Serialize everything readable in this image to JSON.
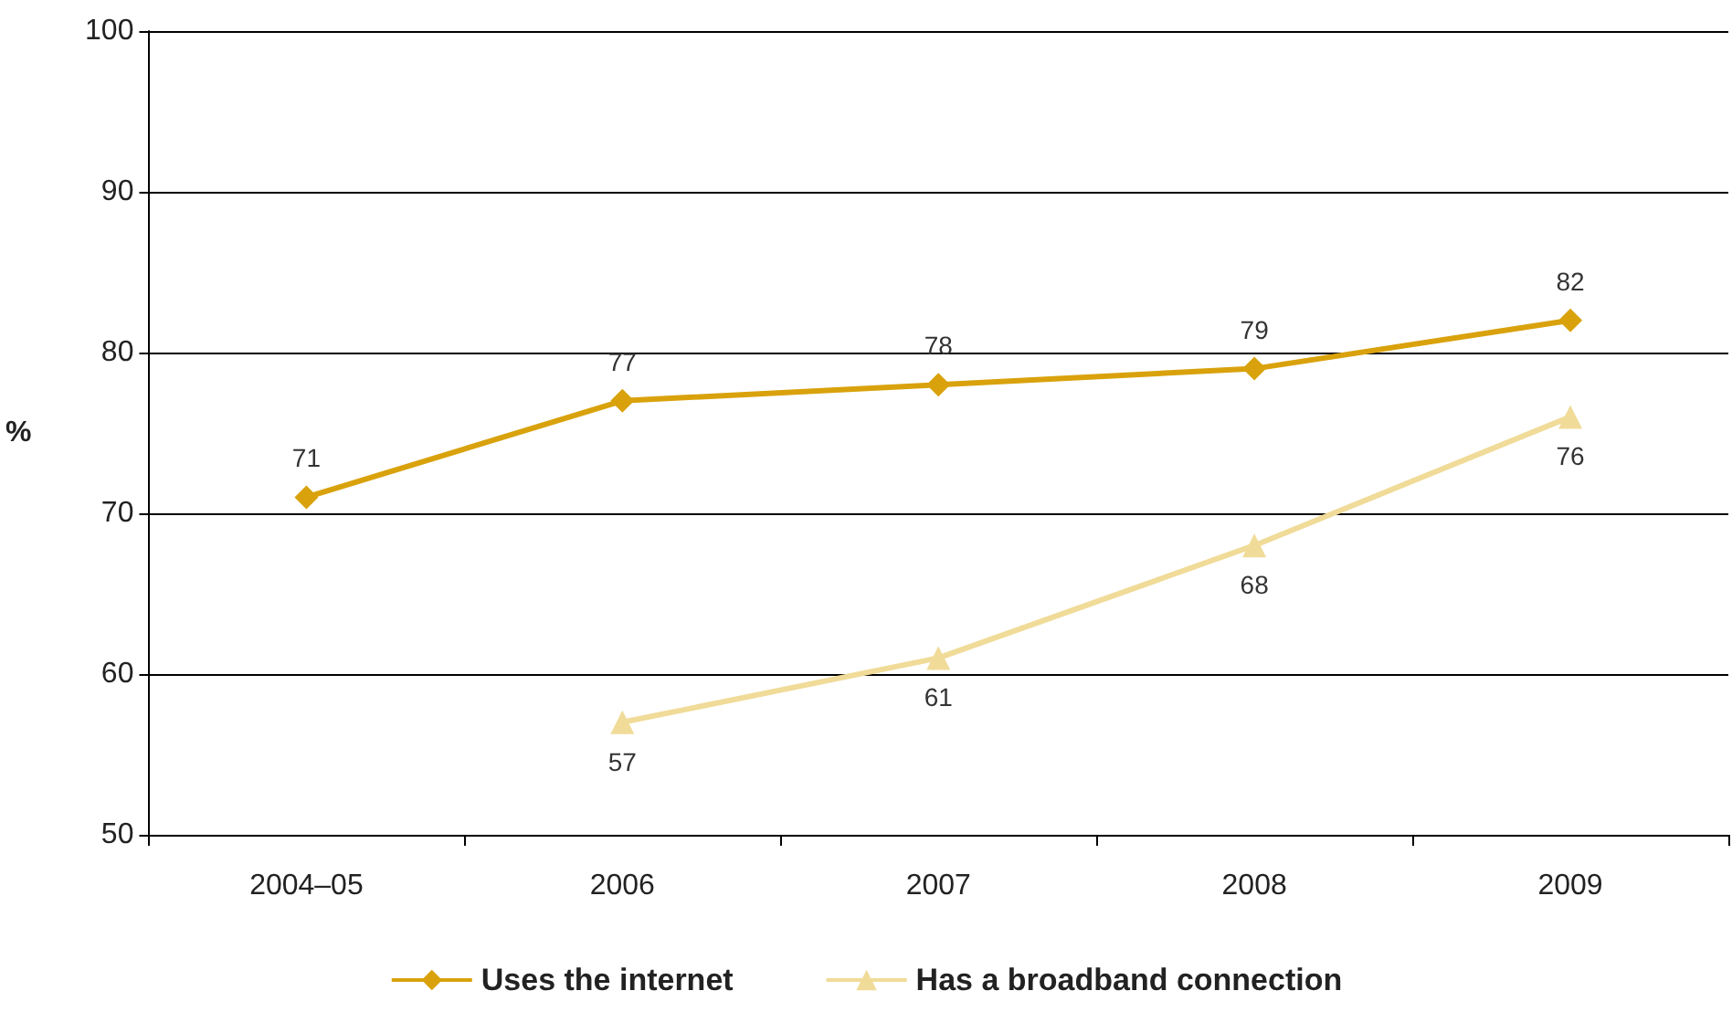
{
  "chart_data": {
    "type": "line",
    "ylabel": "%",
    "categories": [
      "2004–05",
      "2006",
      "2007",
      "2008",
      "2009"
    ],
    "series": [
      {
        "name": "Uses the internet",
        "color": "#d9a20c",
        "marker": "diamond",
        "values": [
          71,
          77,
          78,
          79,
          82
        ]
      },
      {
        "name": "Has a broadband connection",
        "color": "#f0db98",
        "marker": "triangle",
        "values": [
          null,
          57,
          61,
          68,
          76
        ]
      }
    ],
    "ylim": [
      50,
      100
    ],
    "yticks": [
      50,
      60,
      70,
      80,
      90,
      100
    ],
    "grid": "y",
    "legend": "bottom",
    "data_labels": true
  }
}
